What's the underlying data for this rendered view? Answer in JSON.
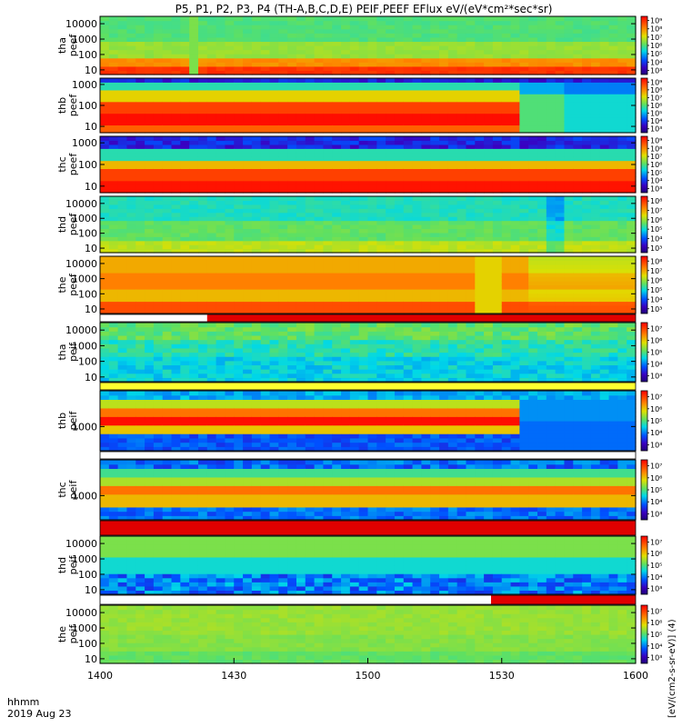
{
  "title": "P5, P1, P2, P3, P4 (TH-A,B,C,D,E) PEIF,PEEF EFlux eV/(eV*cm²*sec*sr)",
  "x_axis": {
    "label_line1": "hhmm",
    "label_line2": "2019 Aug 23",
    "ticks": [
      "1400",
      "1430",
      "1500",
      "1530",
      "1600"
    ]
  },
  "colorbar_units": "[eV/(cm2-s-sr-eV)] (4)",
  "chart_data": [
    {
      "type": "heatmap",
      "probe": "tha",
      "species": "peef",
      "ylabel": [
        "tha",
        "peef"
      ],
      "yscale": "log",
      "ylim": [
        5,
        30000
      ],
      "yticks": [
        "10",
        "100",
        "1000",
        "10000"
      ],
      "colorbar_ticks": [
        "10³",
        "10⁴",
        "10⁵",
        "10⁶",
        "10⁷",
        "10⁸",
        "10⁹"
      ],
      "time_range": [
        "1400",
        "1600"
      ]
    },
    {
      "type": "heatmap",
      "probe": "thb",
      "species": "peef",
      "ylabel": [
        "thb",
        "peef"
      ],
      "yscale": "log",
      "ylim": [
        5,
        2000
      ],
      "yticks": [
        "10",
        "100",
        "1000"
      ],
      "colorbar_ticks": [
        "10³",
        "10⁴",
        "10⁵",
        "10⁶",
        "10⁷",
        "10⁸",
        "10⁹"
      ],
      "time_range": [
        "1400",
        "1600"
      ]
    },
    {
      "type": "heatmap",
      "probe": "thc",
      "species": "peef",
      "ylabel": [
        "thc",
        "peef"
      ],
      "yscale": "log",
      "ylim": [
        5,
        2000
      ],
      "yticks": [
        "10",
        "100",
        "1000"
      ],
      "colorbar_ticks": [
        "10³",
        "10⁴",
        "10⁵",
        "10⁶",
        "10⁷",
        "10⁸",
        "10⁹"
      ],
      "time_range": [
        "1400",
        "1600"
      ]
    },
    {
      "type": "heatmap",
      "probe": "thd",
      "species": "peef",
      "ylabel": [
        "thd",
        "peef"
      ],
      "yscale": "log",
      "ylim": [
        5,
        30000
      ],
      "yticks": [
        "10",
        "100",
        "1000",
        "10000"
      ],
      "colorbar_ticks": [
        "10³",
        "10⁴",
        "10⁵",
        "10⁶",
        "10⁷",
        "10⁸"
      ],
      "time_range": [
        "1400",
        "1600"
      ]
    },
    {
      "type": "heatmap",
      "probe": "the",
      "species": "peef",
      "ylabel": [
        "the",
        "peef"
      ],
      "yscale": "log",
      "ylim": [
        5,
        30000
      ],
      "yticks": [
        "10",
        "100",
        "1000",
        "10000"
      ],
      "colorbar_ticks": [
        "10³",
        "10⁴",
        "10⁵",
        "10⁶",
        "10⁷",
        "10⁸"
      ],
      "time_range": [
        "1400",
        "1600"
      ]
    },
    {
      "type": "heatmap",
      "probe": "tha",
      "species": "peif",
      "ylabel": [
        "tha",
        "peif"
      ],
      "yscale": "log",
      "ylim": [
        5,
        30000
      ],
      "yticks": [
        "10",
        "100",
        "1000",
        "10000"
      ],
      "colorbar_ticks": [
        "10³",
        "10⁴",
        "10⁵",
        "10⁶",
        "10⁷"
      ],
      "time_range": [
        "1400",
        "1600"
      ]
    },
    {
      "type": "heatmap",
      "probe": "thb",
      "species": "peif",
      "ylabel": [
        "thb",
        "peif"
      ],
      "yscale": "log",
      "ylim": [
        100,
        30000
      ],
      "yticks": [
        "1000"
      ],
      "colorbar_ticks": [
        "10³",
        "10⁴",
        "10⁵",
        "10⁶",
        "10⁷"
      ],
      "time_range": [
        "1400",
        "1600"
      ]
    },
    {
      "type": "heatmap",
      "probe": "thc",
      "species": "peif",
      "ylabel": [
        "thc",
        "peif"
      ],
      "yscale": "log",
      "ylim": [
        100,
        30000
      ],
      "yticks": [
        "1000"
      ],
      "colorbar_ticks": [
        "10³",
        "10⁴",
        "10⁵",
        "10⁶",
        "10⁷"
      ],
      "time_range": [
        "1400",
        "1600"
      ]
    },
    {
      "type": "heatmap",
      "probe": "thd",
      "species": "peif",
      "ylabel": [
        "thd",
        "peif"
      ],
      "yscale": "log",
      "ylim": [
        5,
        30000
      ],
      "yticks": [
        "10",
        "100",
        "1000",
        "10000"
      ],
      "colorbar_ticks": [
        "10³",
        "10⁴",
        "10⁵",
        "10⁶",
        "10⁷"
      ],
      "time_range": [
        "1400",
        "1600"
      ]
    },
    {
      "type": "heatmap",
      "probe": "the",
      "species": "peif",
      "ylabel": [
        "the",
        "peif"
      ],
      "yscale": "log",
      "ylim": [
        5,
        30000
      ],
      "yticks": [
        "10",
        "100",
        "1000",
        "10000"
      ],
      "colorbar_ticks": [
        "10³",
        "10⁴",
        "10⁵",
        "10⁶",
        "10⁷"
      ],
      "time_range": [
        "1400",
        "1600"
      ]
    }
  ]
}
